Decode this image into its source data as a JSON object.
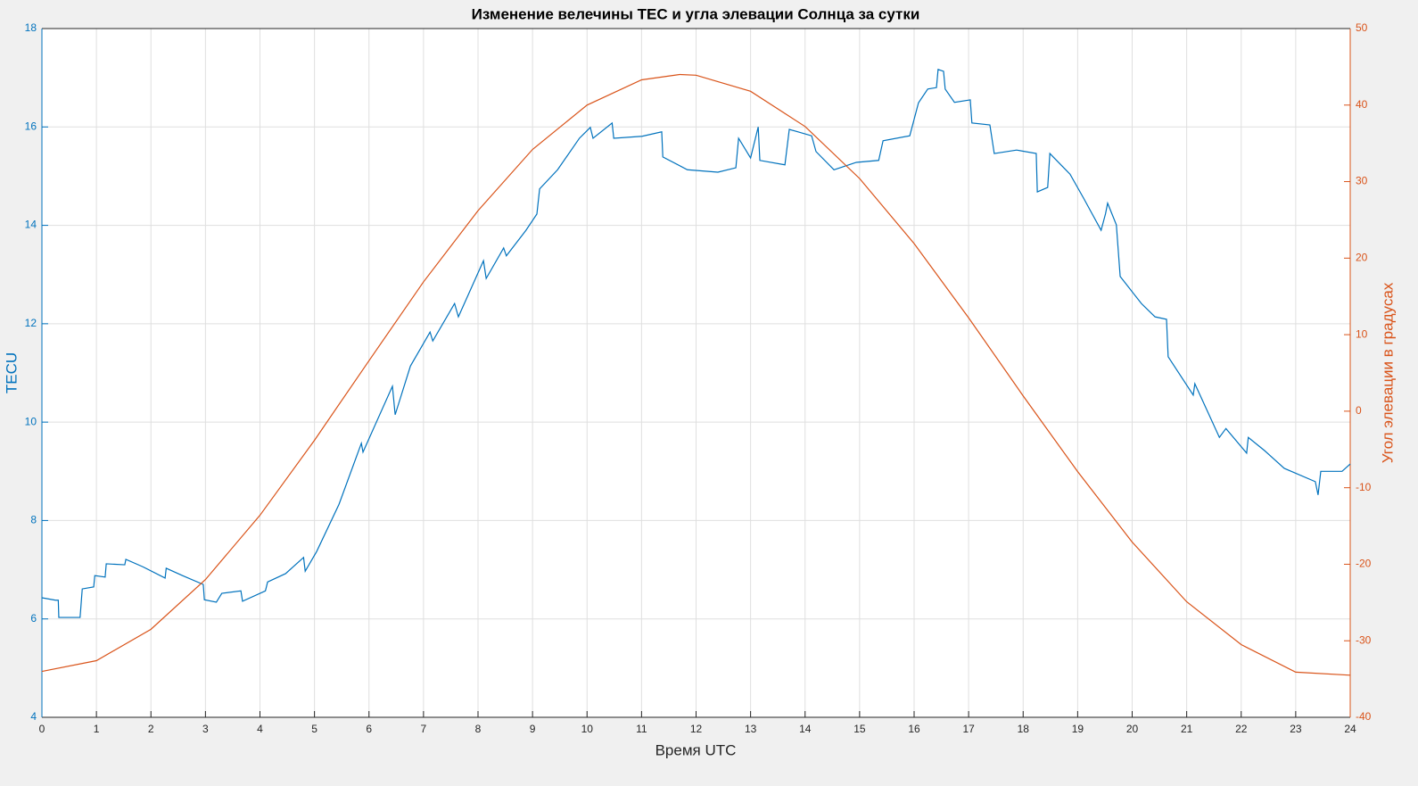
{
  "chart_data": {
    "type": "line",
    "title": "Изменение велечины TEC и угла элевации Солнца за сутки",
    "xlabel": "Время UTC",
    "ylabel": "TECU",
    "y2label": "Угол элевации в градусах",
    "xlim": [
      0,
      24
    ],
    "xticks": [
      0,
      1,
      2,
      3,
      4,
      5,
      6,
      7,
      8,
      9,
      10,
      11,
      12,
      13,
      14,
      15,
      16,
      17,
      18,
      19,
      20,
      21,
      22,
      23,
      24
    ],
    "ylim": [
      4,
      18
    ],
    "yticks": [
      4,
      6,
      8,
      10,
      12,
      14,
      16,
      18
    ],
    "y2lim": [
      -40,
      50
    ],
    "y2ticks": [
      -40,
      -30,
      -20,
      -10,
      0,
      10,
      20,
      30,
      40,
      50
    ],
    "grid": true,
    "series": [
      {
        "color": "#0072BD",
        "x": [
          0,
          0.25,
          0.3,
          0.31,
          0.7,
          0.74,
          0.95,
          0.97,
          1.16,
          1.18,
          1.52,
          1.54,
          1.85,
          2.26,
          2.28,
          2.58,
          2.96,
          2.98,
          3.2,
          3.3,
          3.65,
          3.68,
          4.1,
          4.14,
          4.47,
          4.8,
          4.83,
          5.04,
          5.45,
          5.86,
          5.89,
          6.43,
          6.48,
          6.76,
          7.12,
          7.17,
          7.57,
          7.64,
          8.1,
          8.15,
          8.47,
          8.52,
          8.88,
          9.08,
          9.13,
          9.46,
          9.86,
          10.06,
          10.11,
          10.46,
          10.49,
          11.01,
          11.37,
          11.39,
          11.84,
          12.4,
          12.73,
          12.78,
          13.0,
          13.14,
          13.17,
          13.63,
          13.71,
          14.12,
          14.2,
          14.53,
          14.94,
          15.35,
          15.43,
          15.92,
          16.08,
          16.25,
          16.41,
          16.44,
          16.54,
          16.57,
          16.74,
          17.03,
          17.06,
          17.39,
          17.47,
          17.88,
          18.24,
          18.26,
          18.45,
          18.49,
          18.86,
          19.11,
          19.43,
          19.51,
          19.55,
          19.71,
          19.78,
          20.17,
          20.42,
          20.63,
          20.66,
          21.12,
          21.15,
          21.6,
          21.72,
          22.1,
          22.13,
          22.43,
          22.79,
          23.36,
          23.41,
          23.46,
          23.85,
          24
        ],
        "values": [
          6.43,
          6.38,
          6.38,
          6.03,
          6.03,
          6.61,
          6.65,
          6.88,
          6.85,
          7.12,
          7.1,
          7.21,
          7.06,
          6.83,
          7.03,
          6.88,
          6.7,
          6.39,
          6.34,
          6.52,
          6.57,
          6.36,
          6.57,
          6.75,
          6.92,
          7.25,
          6.97,
          7.37,
          8.33,
          9.57,
          9.39,
          10.73,
          10.15,
          11.14,
          11.83,
          11.65,
          12.41,
          12.14,
          13.28,
          12.92,
          13.54,
          13.38,
          13.9,
          14.23,
          14.74,
          15.13,
          15.77,
          15.99,
          15.77,
          16.08,
          15.77,
          15.81,
          15.9,
          15.39,
          15.13,
          15.08,
          15.17,
          15.77,
          15.37,
          16.0,
          15.32,
          15.23,
          15.95,
          15.82,
          15.5,
          15.13,
          15.28,
          15.32,
          15.72,
          15.82,
          16.49,
          16.77,
          16.8,
          17.17,
          17.13,
          16.77,
          16.5,
          16.55,
          16.08,
          16.04,
          15.46,
          15.53,
          15.46,
          14.68,
          14.77,
          15.46,
          15.04,
          14.55,
          13.9,
          14.23,
          14.45,
          14.01,
          12.96,
          12.41,
          12.14,
          12.09,
          11.33,
          10.55,
          10.78,
          9.69,
          9.87,
          9.37,
          9.69,
          9.42,
          9.06,
          8.79,
          8.52,
          9.0,
          9.0,
          9.15
        ]
      },
      {
        "color": "#D95319",
        "axis": "y2",
        "x": [
          0,
          1,
          2,
          3,
          4,
          5,
          6,
          7,
          8,
          9,
          10,
          11,
          11.7,
          12,
          13,
          14,
          15,
          16,
          17,
          18,
          19,
          20,
          21,
          22,
          23,
          24
        ],
        "values": [
          -34,
          -32.6,
          -28.5,
          -22.0,
          -13.6,
          -3.8,
          6.6,
          16.9,
          26.2,
          34.2,
          40.0,
          43.3,
          44.0,
          43.9,
          41.8,
          37.2,
          30.4,
          21.9,
          12.2,
          2.0,
          -7.9,
          -17.1,
          -24.9,
          -30.5,
          -34.1,
          -34.5
        ]
      }
    ]
  }
}
